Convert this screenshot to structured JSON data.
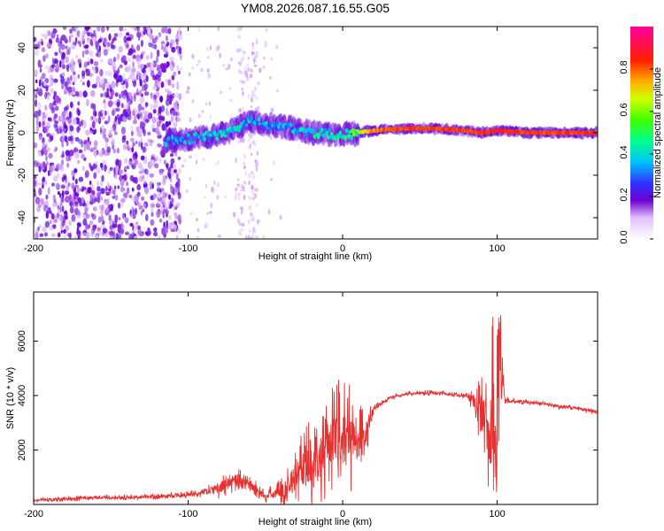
{
  "chart_data": [
    {
      "type": "heatmap",
      "title": "YM08.2026.087.16.55.G05",
      "xlabel": "Height of straight line (km)",
      "ylabel": "Frequency (Hz)",
      "xlim": [
        -200,
        165
      ],
      "ylim": [
        -50,
        50
      ],
      "xticks": [
        -200,
        -100,
        0,
        100
      ],
      "yticks": [
        -40,
        -20,
        0,
        20,
        40
      ],
      "colorbar": {
        "label": "Normalized spectral amplitude",
        "range": [
          0,
          1
        ],
        "ticks": [
          "0.0",
          "0.2",
          "0.4",
          "0.6",
          "0.8"
        ],
        "tick_values": [
          0.0,
          0.2,
          0.4,
          0.6,
          0.8
        ],
        "colormap": [
          "#ffffff",
          "#7000d0",
          "#4040ff",
          "#00d0ff",
          "#00ff70",
          "#80ff00",
          "#ffff00",
          "#ff9000",
          "#ff0000",
          "#ff00a0"
        ]
      },
      "ridge": {
        "x": [
          -115,
          -100,
          -80,
          -60,
          -40,
          -20,
          0,
          20,
          40,
          60,
          80,
          90,
          100,
          120,
          140,
          165
        ],
        "freq": [
          -4,
          -3,
          -1,
          5,
          3,
          0,
          -1,
          1,
          2,
          2,
          1,
          0,
          1,
          0,
          0,
          0
        ],
        "peak_amplitude": [
          0.35,
          0.38,
          0.42,
          0.4,
          0.38,
          0.45,
          0.45,
          0.8,
          0.85,
          0.85,
          0.85,
          0.85,
          0.9,
          0.85,
          0.85,
          0.85
        ]
      }
    },
    {
      "type": "line",
      "title": "",
      "xlabel": "Height of straight line (km)",
      "ylabel": "SNR (10 * v/v)",
      "xlim": [
        -200,
        165
      ],
      "ylim": [
        0,
        7800
      ],
      "xticks": [
        -200,
        -100,
        0,
        100
      ],
      "yticks": [
        2000,
        4000,
        6000
      ],
      "color": "#e83030",
      "series": [
        {
          "name": "SNR",
          "x": [
            -200,
            -180,
            -160,
            -140,
            -120,
            -100,
            -90,
            -80,
            -70,
            -60,
            -50,
            -40,
            -35,
            -30,
            -25,
            -20,
            -15,
            -10,
            -5,
            0,
            5,
            10,
            15,
            20,
            25,
            30,
            40,
            50,
            60,
            70,
            80,
            85,
            90,
            93,
            96,
            99,
            102,
            105,
            110,
            120,
            130,
            140,
            150,
            165
          ],
          "y": [
            150,
            200,
            250,
            250,
            300,
            350,
            450,
            600,
            900,
            700,
            300,
            450,
            700,
            1100,
            1400,
            1600,
            1900,
            2200,
            2400,
            2500,
            2400,
            2300,
            2600,
            3500,
            3700,
            3900,
            4050,
            4100,
            4100,
            4050,
            4000,
            3800,
            3300,
            3000,
            2000,
            3200,
            4700,
            3800,
            3800,
            3750,
            3700,
            3600,
            3550,
            3400
          ],
          "noise_amplitude": [
            100,
            100,
            100,
            100,
            120,
            150,
            200,
            400,
            500,
            450,
            250,
            500,
            900,
            1200,
            1500,
            1700,
            1900,
            2000,
            2100,
            2200,
            2000,
            1500,
            1000,
            200,
            150,
            120,
            100,
            100,
            100,
            100,
            120,
            600,
            1500,
            2000,
            2000,
            2500,
            2500,
            200,
            120,
            100,
            100,
            100,
            100,
            100
          ]
        }
      ]
    }
  ]
}
